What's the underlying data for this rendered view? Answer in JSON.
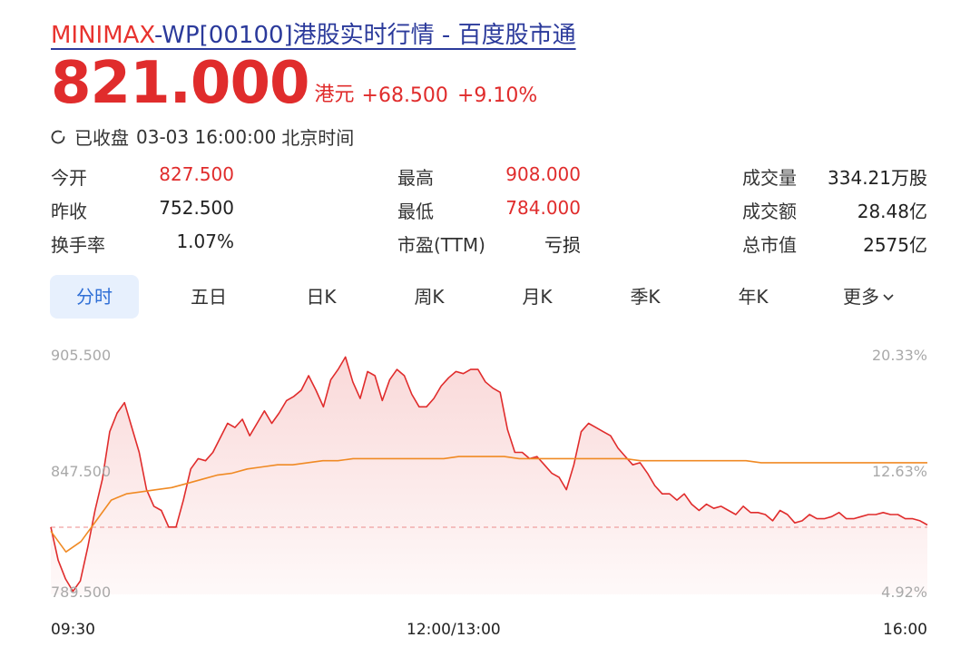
{
  "header": {
    "title_brand": "MINIMAX",
    "title_rest": "-WP[00100]港股实时行情 - 百度股市通",
    "price": "821.000",
    "currency": "港元",
    "change": "+68.500",
    "change_pct": "+9.10%",
    "status": "已收盘",
    "datetime": "03-03 16:00:00",
    "timezone": "北京时间"
  },
  "stats": {
    "open_label": "今开",
    "open": "827.500",
    "prev_close_label": "昨收",
    "prev_close": "752.500",
    "turnover_label": "换手率",
    "turnover": "1.07%",
    "high_label": "最高",
    "high": "908.000",
    "low_label": "最低",
    "low": "784.000",
    "pe_label": "市盈(TTM)",
    "pe": "亏损",
    "volume_label": "成交量",
    "volume": "334.21万股",
    "amount_label": "成交额",
    "amount": "28.48亿",
    "mcap_label": "总市值",
    "mcap": "2575亿"
  },
  "tabs": [
    "分时",
    "五日",
    "日K",
    "周K",
    "月K",
    "季K",
    "年K",
    "更多"
  ],
  "active_tab": "分时",
  "colors": {
    "up": "#e02c2c",
    "avg_line": "#f08a24",
    "accent": "#2f6fd6"
  },
  "chart_data": {
    "type": "line",
    "title": "",
    "y_left_ticks": [
      "905.500",
      "847.500",
      "789.500"
    ],
    "y_right_ticks": [
      "20.33%",
      "12.63%",
      "4.92%"
    ],
    "x_ticks": [
      "09:30",
      "12:00/13:00",
      "16:00"
    ],
    "ylim": [
      789.5,
      905.5
    ],
    "baseline": 752.5,
    "series": [
      {
        "values": [
          822,
          806,
          797,
          791,
          796,
          812,
          830,
          845,
          868,
          877,
          882,
          870,
          858,
          840,
          832,
          830,
          822,
          822,
          835,
          850,
          855,
          854,
          858,
          865,
          872,
          870,
          874,
          866,
          872,
          878,
          872,
          877,
          883,
          885,
          888,
          895,
          888,
          880,
          893,
          898,
          904,
          892,
          884,
          897,
          895,
          883,
          893,
          898,
          895,
          886,
          880,
          880,
          884,
          890,
          894,
          897,
          896,
          898,
          898,
          892,
          889,
          887,
          869,
          858,
          858,
          855,
          856,
          852,
          848,
          846,
          840,
          852,
          868,
          872,
          870,
          868,
          866,
          860,
          856,
          852,
          853,
          848,
          842,
          838,
          838,
          835,
          838,
          833,
          830,
          833,
          831,
          832,
          830,
          828,
          832,
          829,
          829,
          828,
          825,
          830,
          828,
          824,
          825,
          828,
          826,
          826,
          827,
          829,
          826,
          826,
          827,
          828,
          828,
          829,
          828,
          828,
          826,
          826,
          825,
          823
        ]
      },
      {
        "values": [
          820,
          810,
          815,
          825,
          835,
          838,
          839,
          840,
          841,
          843,
          845,
          847,
          848,
          850,
          851,
          852,
          852,
          853,
          854,
          854,
          855,
          855,
          855,
          855,
          855,
          855,
          855,
          856,
          856,
          856,
          856,
          855,
          855,
          855,
          855,
          855,
          855,
          855,
          855,
          854,
          854,
          854,
          854,
          854,
          854,
          854,
          854,
          853,
          853,
          853,
          853,
          853,
          853,
          853,
          853,
          853,
          853,
          853,
          853
        ]
      }
    ]
  }
}
